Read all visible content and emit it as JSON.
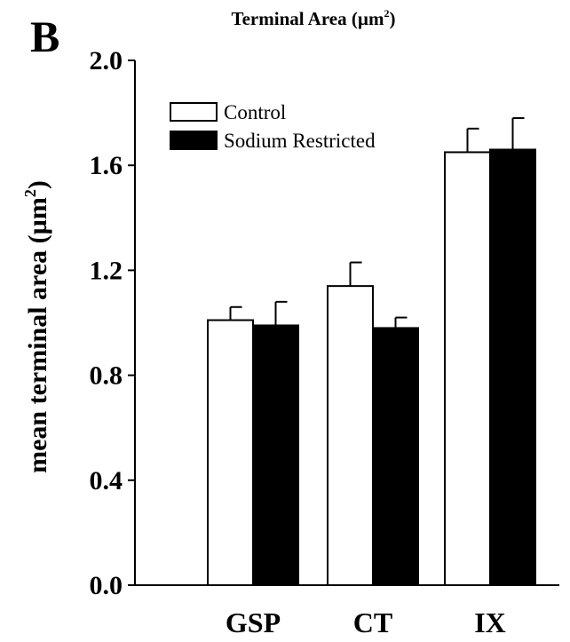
{
  "panel_label": "B",
  "chart_data": {
    "type": "bar",
    "title": "Terminal Area (µm",
    "title_superscript": "2",
    "title_suffix": ")",
    "ylabel": "mean terminal area (µm",
    "ylabel_superscript": "2",
    "ylabel_suffix": ")",
    "xlabel": "",
    "categories": [
      "GSP",
      "CT",
      "IX"
    ],
    "ylim": [
      0.0,
      2.0
    ],
    "yticks": [
      "0.0",
      "0.4",
      "0.8",
      "1.2",
      "1.6",
      "2.0"
    ],
    "ytick_values": [
      0.0,
      0.4,
      0.8,
      1.2,
      1.6,
      2.0
    ],
    "legend_position": "top-left",
    "series": [
      {
        "name": "Control",
        "color": "#ffffff",
        "values": [
          1.01,
          1.14,
          1.65
        ],
        "errors": [
          0.05,
          0.09,
          0.09
        ]
      },
      {
        "name": "Sodium Restricted",
        "color": "#000000",
        "values": [
          0.99,
          0.98,
          1.66
        ],
        "errors": [
          0.09,
          0.04,
          0.12
        ]
      }
    ]
  }
}
